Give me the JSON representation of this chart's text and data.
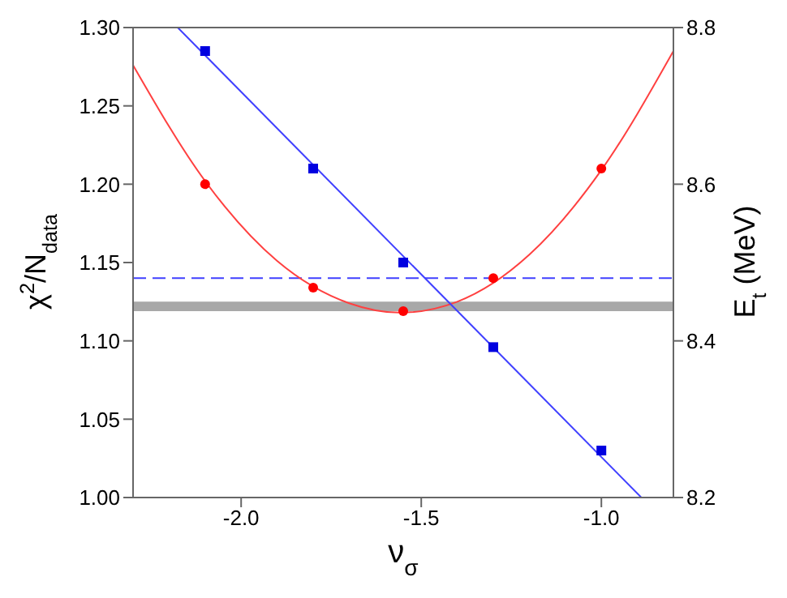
{
  "chart_data": {
    "type": "scatter",
    "xlabel": "ν$_{σ}$",
    "ylabel": "χ$^{2}$/N$_{data}$",
    "y2label": "E$_{t}$ (MeV)",
    "xlim": [
      -2.3,
      -0.8
    ],
    "xticks": [
      {
        "value": -2.0,
        "label": "-2.0"
      },
      {
        "value": -1.5,
        "label": "-1.5"
      },
      {
        "value": -1.0,
        "label": "-1.0"
      }
    ],
    "ylim": [
      1.0,
      1.3
    ],
    "yticks": [
      {
        "value": 1.0,
        "label": "1.00"
      },
      {
        "value": 1.05,
        "label": "1.05"
      },
      {
        "value": 1.1,
        "label": "1.10"
      },
      {
        "value": 1.15,
        "label": "1.15"
      },
      {
        "value": 1.2,
        "label": "1.20"
      },
      {
        "value": 1.25,
        "label": "1.25"
      },
      {
        "value": 1.3,
        "label": "1.30"
      }
    ],
    "y2lim": [
      8.2,
      8.8
    ],
    "y2ticks": [
      {
        "value": 8.2,
        "label": "8.2"
      },
      {
        "value": 8.4,
        "label": "8.4"
      },
      {
        "value": 8.6,
        "label": "8.6"
      },
      {
        "value": 8.8,
        "label": "8.8"
      }
    ],
    "x": [
      -2.1,
      -1.8,
      -1.55,
      -1.3,
      -1.0
    ],
    "series": [
      {
        "color": "#ff0000",
        "marker": "circle",
        "values": [
          1.2,
          1.134,
          1.119,
          1.14,
          1.21
        ]
      },
      {
        "type": "line",
        "color": "#ff4040",
        "marker": "none",
        "x": [
          -2.3,
          -2.1,
          -1.9,
          -1.7,
          -1.56,
          -1.4,
          -1.2,
          -1.0,
          -0.8
        ],
        "values": [
          1.276,
          1.202,
          1.151,
          1.124,
          1.118,
          1.125,
          1.155,
          1.209,
          1.285
        ]
      },
      {
        "color": "#0000e0",
        "marker": "square",
        "axis": "y2",
        "values": [
          8.77,
          8.62,
          8.5,
          8.392,
          8.26
        ]
      },
      {
        "type": "line",
        "color": "#4040ff",
        "marker": "none",
        "axis": "y2",
        "x": [
          -2.176,
          -0.889
        ],
        "values": [
          8.8,
          8.2
        ]
      }
    ],
    "ref_lines": [
      {
        "axis": "y",
        "value": 1.14,
        "color": "#4040ff",
        "line_style": "dashed"
      }
    ],
    "bands": [
      {
        "axis": "y",
        "from": 1.119,
        "to": 1.125,
        "color": "#a8a8a8"
      }
    ],
    "grid": false
  }
}
